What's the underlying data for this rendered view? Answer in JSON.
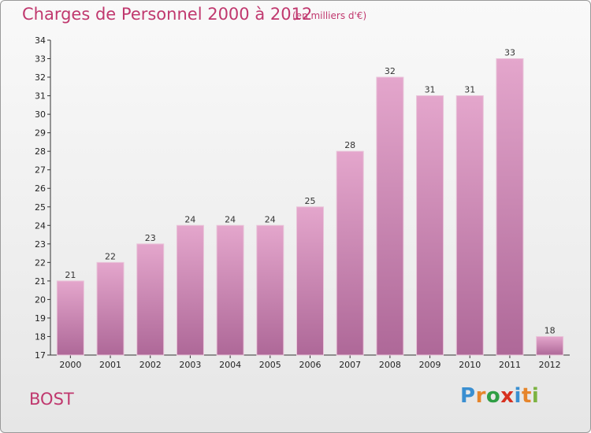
{
  "header": {
    "title": "Charges de Personnel 2000 à 2012",
    "unit_note": "(en milliers d'€)"
  },
  "footer": {
    "place": "BOST",
    "logo": {
      "text": "Proxiti",
      "letter_colors": [
        "#3a8fd1",
        "#e6852b",
        "#2f9e44",
        "#d7301f",
        "#3a8fd1",
        "#e6852b",
        "#7cb342"
      ]
    }
  },
  "colors": {
    "accent": "#c0386e",
    "bar_top": "#e4a6cc",
    "bar_bottom": "#ae6898"
  },
  "chart_data": {
    "type": "bar",
    "title": "Charges de Personnel 2000 à 2012",
    "subtitle": "(en milliers d'€)",
    "categories": [
      "2000",
      "2001",
      "2002",
      "2003",
      "2004",
      "2005",
      "2006",
      "2007",
      "2008",
      "2009",
      "2010",
      "2011",
      "2012"
    ],
    "values": [
      21,
      22,
      23,
      24,
      24,
      24,
      25,
      28,
      32,
      31,
      31,
      33,
      18
    ],
    "ylim": [
      17,
      34
    ],
    "yticks": [
      17,
      18,
      19,
      20,
      21,
      22,
      23,
      24,
      25,
      26,
      27,
      28,
      29,
      30,
      31,
      32,
      33,
      34
    ],
    "grid": false,
    "data_labels": true
  }
}
